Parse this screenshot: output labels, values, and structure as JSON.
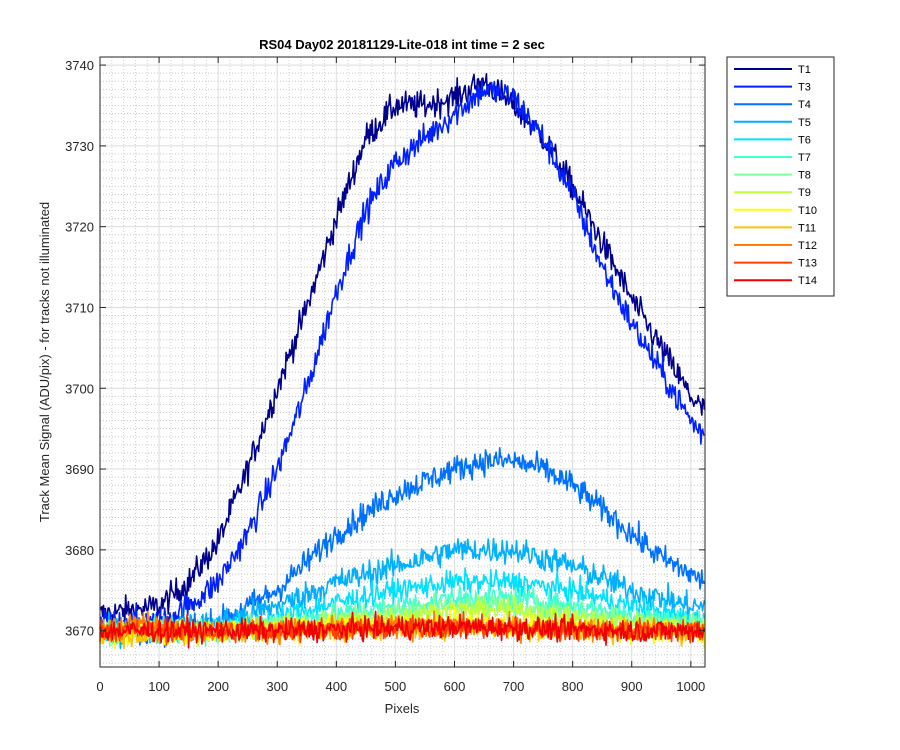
{
  "chart_data": {
    "type": "line",
    "title": "RS04 Day02 20181129-Lite-018 int time = 2 sec",
    "xlabel": "Pixels",
    "ylabel": "Track Mean Signal (ADU/pix) - for tracks not illuminated",
    "xlim": [
      0,
      1024
    ],
    "ylim": [
      3665.5,
      3741
    ],
    "xticks": [
      0,
      100,
      200,
      300,
      400,
      500,
      600,
      700,
      800,
      900,
      1000
    ],
    "yticks": [
      3670,
      3680,
      3690,
      3700,
      3710,
      3720,
      3730,
      3740
    ],
    "xtick_labels": [
      "0",
      "100",
      "200",
      "300",
      "400",
      "500",
      "600",
      "700",
      "800",
      "900",
      "1000"
    ],
    "ytick_labels": [
      "3670",
      "3680",
      "3690",
      "3700",
      "3710",
      "3720",
      "3730",
      "3740"
    ],
    "grid": "major and minor",
    "legend_position": "outside-right-top",
    "series": [
      {
        "name": "T1",
        "color": "#00008F",
        "x": [
          0,
          100,
          150,
          200,
          250,
          300,
          350,
          400,
          450,
          500,
          550,
          600,
          650,
          700,
          750,
          800,
          850,
          900,
          950,
          1000,
          1024
        ],
        "values": [
          3672,
          3673,
          3676,
          3681,
          3690,
          3700,
          3710,
          3721,
          3731,
          3735,
          3735,
          3736,
          3738,
          3735,
          3731,
          3725,
          3718,
          3711,
          3705,
          3699,
          3697
        ]
      },
      {
        "name": "T3",
        "color": "#0020FF",
        "x": [
          0,
          100,
          150,
          200,
          250,
          300,
          350,
          400,
          450,
          500,
          550,
          600,
          650,
          700,
          750,
          800,
          850,
          900,
          950,
          1000,
          1024
        ],
        "values": [
          3671,
          3671,
          3673,
          3676,
          3682,
          3690,
          3700,
          3712,
          3722,
          3728,
          3731,
          3734,
          3737,
          3736,
          3731,
          3724,
          3715,
          3708,
          3702,
          3696,
          3694
        ]
      },
      {
        "name": "T4",
        "color": "#0070FF",
        "x": [
          0,
          100,
          200,
          300,
          400,
          500,
          600,
          650,
          700,
          750,
          800,
          850,
          900,
          950,
          1000,
          1024
        ],
        "values": [
          3670,
          3670,
          3671,
          3675,
          3682,
          3687,
          3690,
          3691,
          3691,
          3690,
          3688,
          3685,
          3682,
          3679,
          3677,
          3676
        ]
      },
      {
        "name": "T5",
        "color": "#00B0FF",
        "x": [
          0,
          100,
          200,
          300,
          400,
          500,
          600,
          700,
          800,
          900,
          1000,
          1024
        ],
        "values": [
          3670,
          3670,
          3671,
          3673,
          3676,
          3678,
          3680,
          3680,
          3678,
          3675,
          3673,
          3673
        ]
      },
      {
        "name": "T6",
        "color": "#00E0FF",
        "x": [
          0,
          100,
          200,
          300,
          400,
          500,
          600,
          700,
          800,
          900,
          1000,
          1024
        ],
        "values": [
          3670,
          3670,
          3670,
          3671.5,
          3673.5,
          3675,
          3676,
          3676,
          3675,
          3673,
          3671.5,
          3671
        ]
      },
      {
        "name": "T7",
        "color": "#40FFD0",
        "x": [
          0,
          100,
          200,
          300,
          400,
          500,
          600,
          700,
          800,
          900,
          1000,
          1024
        ],
        "values": [
          3670,
          3670,
          3670,
          3671,
          3672,
          3673,
          3674,
          3674,
          3673,
          3672,
          3671,
          3671
        ]
      },
      {
        "name": "T8",
        "color": "#80FFA0",
        "x": [
          0,
          200,
          400,
          600,
          700,
          800,
          1000,
          1024
        ],
        "values": [
          3670,
          3670,
          3671.5,
          3673,
          3673,
          3672,
          3670.5,
          3670.5
        ]
      },
      {
        "name": "T9",
        "color": "#C0FF40",
        "x": [
          0,
          200,
          400,
          600,
          700,
          800,
          1000,
          1024
        ],
        "values": [
          3670,
          3670,
          3671,
          3672.5,
          3672.5,
          3671.5,
          3670.5,
          3670.5
        ]
      },
      {
        "name": "T10",
        "color": "#FFFF00",
        "x": [
          0,
          300,
          600,
          900,
          1024
        ],
        "values": [
          3669.5,
          3670,
          3671,
          3670,
          3669.5
        ]
      },
      {
        "name": "T11",
        "color": "#FFC000",
        "x": [
          0,
          300,
          600,
          900,
          1024
        ],
        "values": [
          3669.5,
          3670,
          3670.5,
          3670,
          3669.5
        ]
      },
      {
        "name": "T12",
        "color": "#FF8000",
        "x": [
          0,
          40,
          65,
          80,
          100,
          300,
          600,
          900,
          1024
        ],
        "values": [
          3670,
          3670.5,
          3672,
          3671,
          3670,
          3670,
          3670.5,
          3670,
          3670
        ]
      },
      {
        "name": "T13",
        "color": "#FF4000",
        "x": [
          0,
          300,
          600,
          900,
          1024
        ],
        "values": [
          3670,
          3670,
          3670.5,
          3670,
          3670
        ]
      },
      {
        "name": "T14",
        "color": "#F00000",
        "x": [
          0,
          300,
          600,
          900,
          1024
        ],
        "values": [
          3670,
          3670,
          3670.5,
          3670,
          3670
        ]
      }
    ]
  }
}
